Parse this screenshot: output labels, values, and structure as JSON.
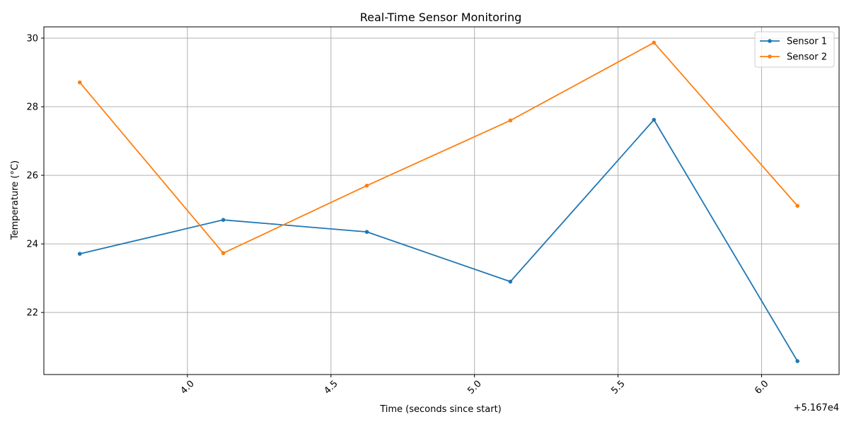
{
  "chart_data": {
    "type": "line",
    "title": "Real-Time Sensor Monitoring",
    "xlabel": "Time (seconds since start)",
    "ylabel": "Temperature (°C)",
    "x_offset_label": "+5.167e4",
    "x": [
      3.625,
      4.125,
      4.625,
      5.125,
      5.625,
      6.125
    ],
    "xlim": [
      3.5,
      6.27
    ],
    "ylim": [
      20.19,
      30.33
    ],
    "x_ticks": [
      4.0,
      4.5,
      5.0,
      5.5,
      6.0
    ],
    "x_tick_labels": [
      "4.0",
      "4.5",
      "5.0",
      "5.5",
      "6.0"
    ],
    "y_ticks": [
      22,
      24,
      26,
      28,
      30
    ],
    "y_tick_labels": [
      "22",
      "24",
      "26",
      "28",
      "30"
    ],
    "grid": true,
    "legend_position": "top-right",
    "series": [
      {
        "name": "Sensor 1",
        "color": "#1f77b4",
        "values": [
          23.71,
          24.7,
          24.35,
          22.9,
          27.62,
          20.58
        ]
      },
      {
        "name": "Sensor 2",
        "color": "#ff7f0e",
        "values": [
          28.71,
          23.73,
          25.7,
          27.6,
          29.87,
          25.11
        ]
      }
    ]
  }
}
